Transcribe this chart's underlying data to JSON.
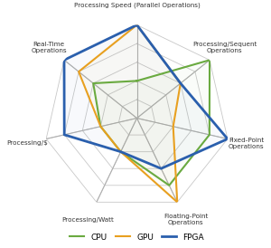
{
  "categories": [
    "Processing Speed (Parallel Operations)",
    "Processing/Sequent\nOperations",
    "Fixed-Point\nOperations",
    "Floating-Point\nOperations",
    "Processing/Watt",
    "Processing/$",
    "Real-Time\nOperations"
  ],
  "series": {
    "CPU": {
      "values": [
        2,
        5,
        4,
        4,
        2,
        2,
        3
      ],
      "color": "#6aaa40",
      "linewidth": 1.5
    },
    "GPU": {
      "values": [
        5,
        3,
        2,
        5,
        2,
        2,
        4
      ],
      "color": "#e8a020",
      "linewidth": 1.5
    },
    "FPGA": {
      "values": [
        5,
        3,
        5,
        3,
        2,
        4,
        5
      ],
      "color": "#2a5fad",
      "linewidth": 2.0
    }
  },
  "num_levels": 5,
  "background_color": "#ffffff",
  "grid_color": "#c8c8c8",
  "label_fontsize": 5.2,
  "legend_fontsize": 6.5
}
